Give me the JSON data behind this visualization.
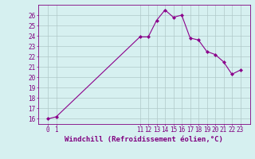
{
  "x": [
    0,
    1,
    11,
    12,
    13,
    14,
    15,
    16,
    17,
    18,
    19,
    20,
    21,
    22,
    23
  ],
  "y": [
    16.0,
    16.2,
    23.9,
    23.9,
    25.5,
    26.5,
    25.8,
    26.0,
    23.8,
    23.6,
    22.5,
    22.2,
    21.5,
    20.3,
    20.7
  ],
  "line_color": "#8B008B",
  "marker": "D",
  "marker_size": 2,
  "bg_color": "#d6f0f0",
  "grid_color": "#b0c8c8",
  "ylim": [
    15.5,
    27.0
  ],
  "yticks": [
    16,
    17,
    18,
    19,
    20,
    21,
    22,
    23,
    24,
    25,
    26
  ],
  "xticks": [
    0,
    1,
    11,
    12,
    13,
    14,
    15,
    16,
    17,
    18,
    19,
    20,
    21,
    22,
    23
  ],
  "xlabel": "Windchill (Refroidissement éolien,°C)",
  "tick_color": "#800080",
  "tick_fontsize": 5.5,
  "xlabel_fontsize": 6.5,
  "linewidth": 0.8
}
